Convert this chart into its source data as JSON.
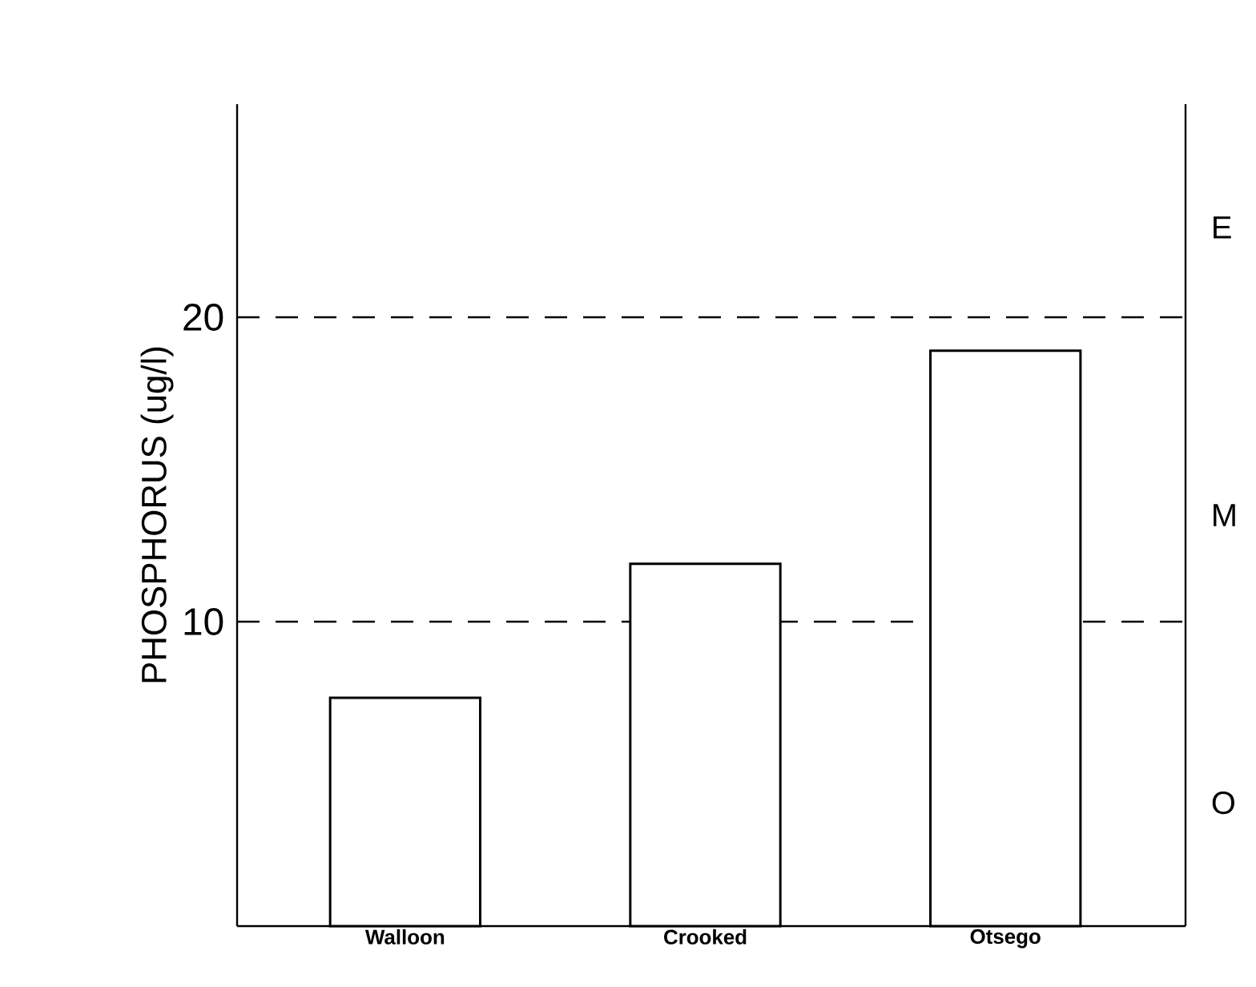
{
  "chart_data": {
    "type": "bar",
    "ylabel": "PHOSPHORUS (ug/l)",
    "categories": [
      "Walloon",
      "Crooked",
      "Otsego"
    ],
    "values": [
      7.5,
      11.9,
      18.9
    ],
    "color": "#000000",
    "ylim": [
      0,
      27
    ],
    "yticks": [
      10,
      20
    ],
    "ref_lines": [
      {
        "axis": "y",
        "value": 10,
        "line_style": "dashed"
      },
      {
        "axis": "y",
        "value": 20,
        "line_style": "dashed"
      }
    ],
    "annotations": [
      "E",
      "M",
      "O"
    ],
    "grid": false
  }
}
